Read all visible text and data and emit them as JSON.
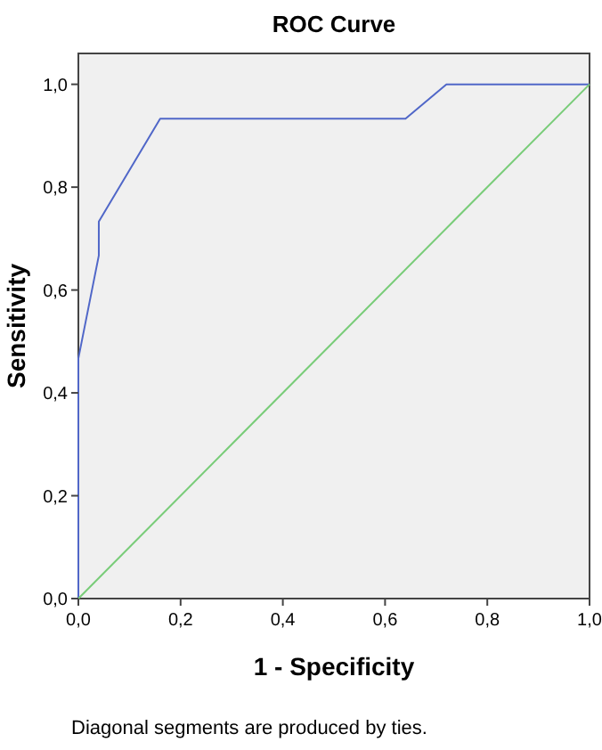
{
  "chart_data": {
    "type": "line",
    "title": "ROC Curve",
    "xlabel": "1 - Specificity",
    "ylabel": "Sensitivity",
    "xlim": [
      0,
      1
    ],
    "ylim": [
      0,
      1.06
    ],
    "xticks": [
      {
        "value": 0,
        "label": "0,0"
      },
      {
        "value": 0.2,
        "label": "0,2"
      },
      {
        "value": 0.4,
        "label": "0,4"
      },
      {
        "value": 0.6,
        "label": "0,6"
      },
      {
        "value": 0.8,
        "label": "0,8"
      },
      {
        "value": 1,
        "label": "1,0"
      }
    ],
    "yticks": [
      {
        "value": 0,
        "label": "0,0"
      },
      {
        "value": 0.2,
        "label": "0,2"
      },
      {
        "value": 0.4,
        "label": "0,4"
      },
      {
        "value": 0.6,
        "label": "0,6"
      },
      {
        "value": 0.8,
        "label": "0,8"
      },
      {
        "value": 1,
        "label": "1,0"
      }
    ],
    "series": [
      {
        "color": "#5067c8",
        "x": [
          0,
          0,
          0.04,
          0.04,
          0.16,
          0.64,
          0.72,
          1
        ],
        "values": [
          0,
          0.467,
          0.667,
          0.733,
          0.933,
          0.933,
          1,
          1
        ]
      },
      {
        "color": "#78cc78",
        "x": [
          0,
          1
        ],
        "values": [
          0,
          1
        ]
      }
    ],
    "annotations": [
      "Diagonal segments are produced by ties."
    ]
  }
}
